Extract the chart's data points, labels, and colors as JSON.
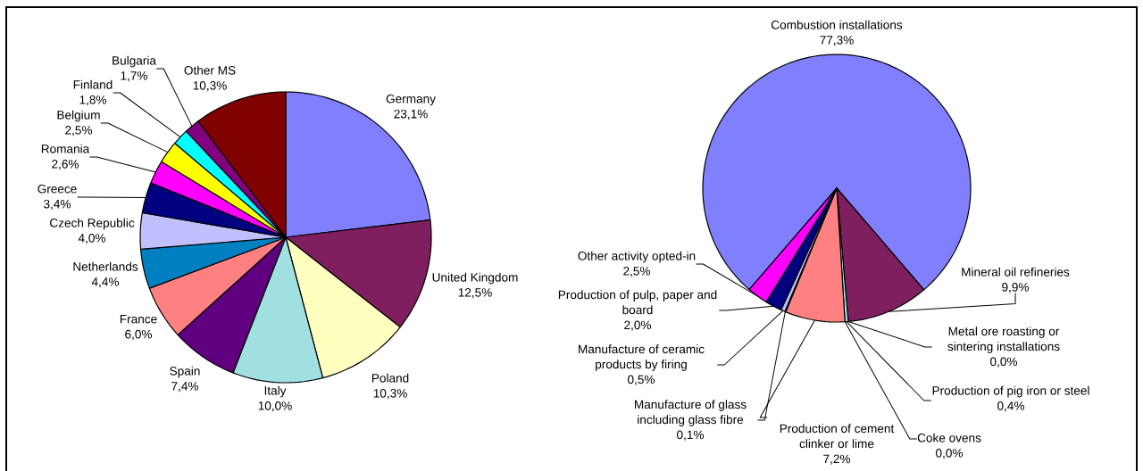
{
  "chart_data": [
    {
      "type": "pie",
      "categories": [
        "Germany",
        "United Kingdom",
        "Poland",
        "Italy",
        "Spain",
        "France",
        "Netherlands",
        "Czech Republic",
        "Greece",
        "Romania",
        "Belgium",
        "Finland",
        "Bulgaria",
        "Other MS"
      ],
      "values": [
        23.1,
        12.5,
        10.3,
        10.0,
        7.4,
        6.0,
        4.4,
        4.0,
        3.4,
        2.6,
        2.5,
        1.8,
        1.7,
        10.3
      ],
      "value_labels": [
        "23,1%",
        "12,5%",
        "10,3%",
        "10,0%",
        "7,4%",
        "6,0%",
        "4,4%",
        "4,0%",
        "3,4%",
        "2,6%",
        "2,5%",
        "1,8%",
        "1,7%",
        "10,3%"
      ],
      "colors": [
        "#8080ff",
        "#7f1f5f",
        "#ffffc0",
        "#a0e0e0",
        "#600080",
        "#ff8080",
        "#0080c0",
        "#c0c0ff",
        "#000080",
        "#ff00ff",
        "#ffff00",
        "#00ffff",
        "#800080",
        "#800000"
      ]
    },
    {
      "type": "pie",
      "categories": [
        "Combustion installations",
        "Mineral oil refineries",
        "Metal ore roasting or sintering installations",
        "Production of pig iron or steel",
        "Coke ovens",
        "Production of cement clinker or lime",
        "Manufacture of glass including glass fibre",
        "Manufacture of ceramic products by firing",
        "Production of pulp, paper and board",
        "Other activity opted-in"
      ],
      "values": [
        77.3,
        9.9,
        0.0,
        0.4,
        0.0,
        7.2,
        0.1,
        0.5,
        2.0,
        2.5
      ],
      "value_labels": [
        "77,3%",
        "9,9%",
        "0,0%",
        "0,4%",
        "0,0%",
        "7,2%",
        "0,1%",
        "0,5%",
        "2,0%",
        "2,5%"
      ],
      "colors": [
        "#8080ff",
        "#7f1f5f",
        "#ffffc0",
        "#a0e0e0",
        "#600080",
        "#ff8080",
        "#0080c0",
        "#c0c0ff",
        "#000080",
        "#ff00ff"
      ]
    }
  ]
}
